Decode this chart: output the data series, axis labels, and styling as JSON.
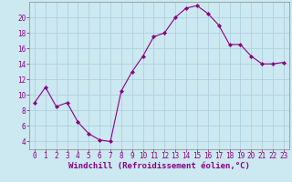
{
  "x": [
    0,
    1,
    2,
    3,
    4,
    5,
    6,
    7,
    8,
    9,
    10,
    11,
    12,
    13,
    14,
    15,
    16,
    17,
    18,
    19,
    20,
    21,
    22,
    23
  ],
  "y": [
    9.0,
    11.0,
    8.5,
    9.0,
    6.5,
    5.0,
    4.2,
    4.0,
    10.5,
    13.0,
    15.0,
    17.5,
    18.0,
    20.0,
    21.2,
    21.5,
    20.5,
    19.0,
    16.5,
    16.5,
    15.0,
    14.0,
    14.0,
    14.2
  ],
  "line_color": "#880088",
  "marker": "D",
  "marker_size": 2.0,
  "bg_color": "#cce8f0",
  "grid_color": "#aaccdd",
  "xlabel": "Windchill (Refroidissement éolien,°C)",
  "xlabel_color": "#880088",
  "xlabel_fontsize": 6.5,
  "tick_color": "#880088",
  "tick_fontsize": 5.5,
  "ylim": [
    3,
    22
  ],
  "xlim": [
    -0.5,
    23.5
  ],
  "yticks": [
    4,
    6,
    8,
    10,
    12,
    14,
    16,
    18,
    20
  ],
  "xticks": [
    0,
    1,
    2,
    3,
    4,
    5,
    6,
    7,
    8,
    9,
    10,
    11,
    12,
    13,
    14,
    15,
    16,
    17,
    18,
    19,
    20,
    21,
    22,
    23
  ]
}
